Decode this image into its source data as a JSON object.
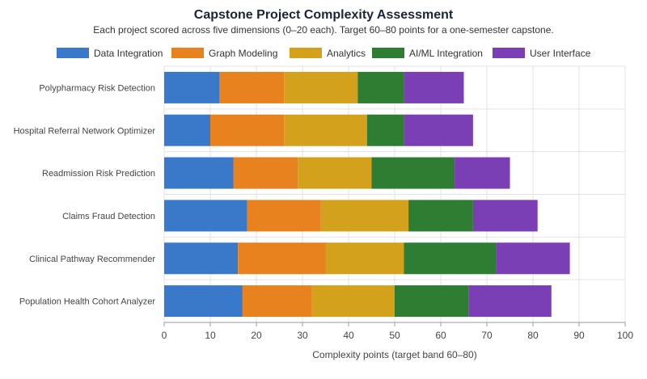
{
  "chart_data": {
    "type": "bar",
    "orientation": "horizontal",
    "stacked": true,
    "title": "Capstone Project Complexity Assessment",
    "subtitle": "Each project scored across five dimensions (0–20 each). Target 60–80 points for a one-semester capstone.",
    "xlabel": "Complexity points (target band 60–80)",
    "ylabel": "",
    "xlim": [
      0,
      100
    ],
    "xticks": [
      0,
      10,
      20,
      30,
      40,
      50,
      60,
      70,
      80,
      90,
      100
    ],
    "grid": true,
    "legend_position": "top",
    "categories": [
      "Polypharmacy Risk Detection",
      "Hospital Referral Network Optimizer",
      "Readmission Risk Prediction",
      "Claims Fraud Detection",
      "Clinical Pathway Recommender",
      "Population Health Cohort Analyzer"
    ],
    "series": [
      {
        "name": "Data Integration",
        "color": "#3a78c9",
        "values": [
          12,
          10,
          15,
          18,
          16,
          17
        ]
      },
      {
        "name": "Graph Modeling",
        "color": "#e8821e",
        "values": [
          14,
          16,
          14,
          16,
          19,
          15
        ]
      },
      {
        "name": "Analytics",
        "color": "#d4a11c",
        "values": [
          16,
          18,
          16,
          19,
          17,
          18
        ]
      },
      {
        "name": "AI/ML Integration",
        "color": "#2e7d32",
        "values": [
          10,
          8,
          18,
          14,
          20,
          16
        ]
      },
      {
        "name": "User Interface",
        "color": "#7b3fb5",
        "values": [
          13,
          15,
          12,
          14,
          16,
          18
        ]
      }
    ]
  }
}
